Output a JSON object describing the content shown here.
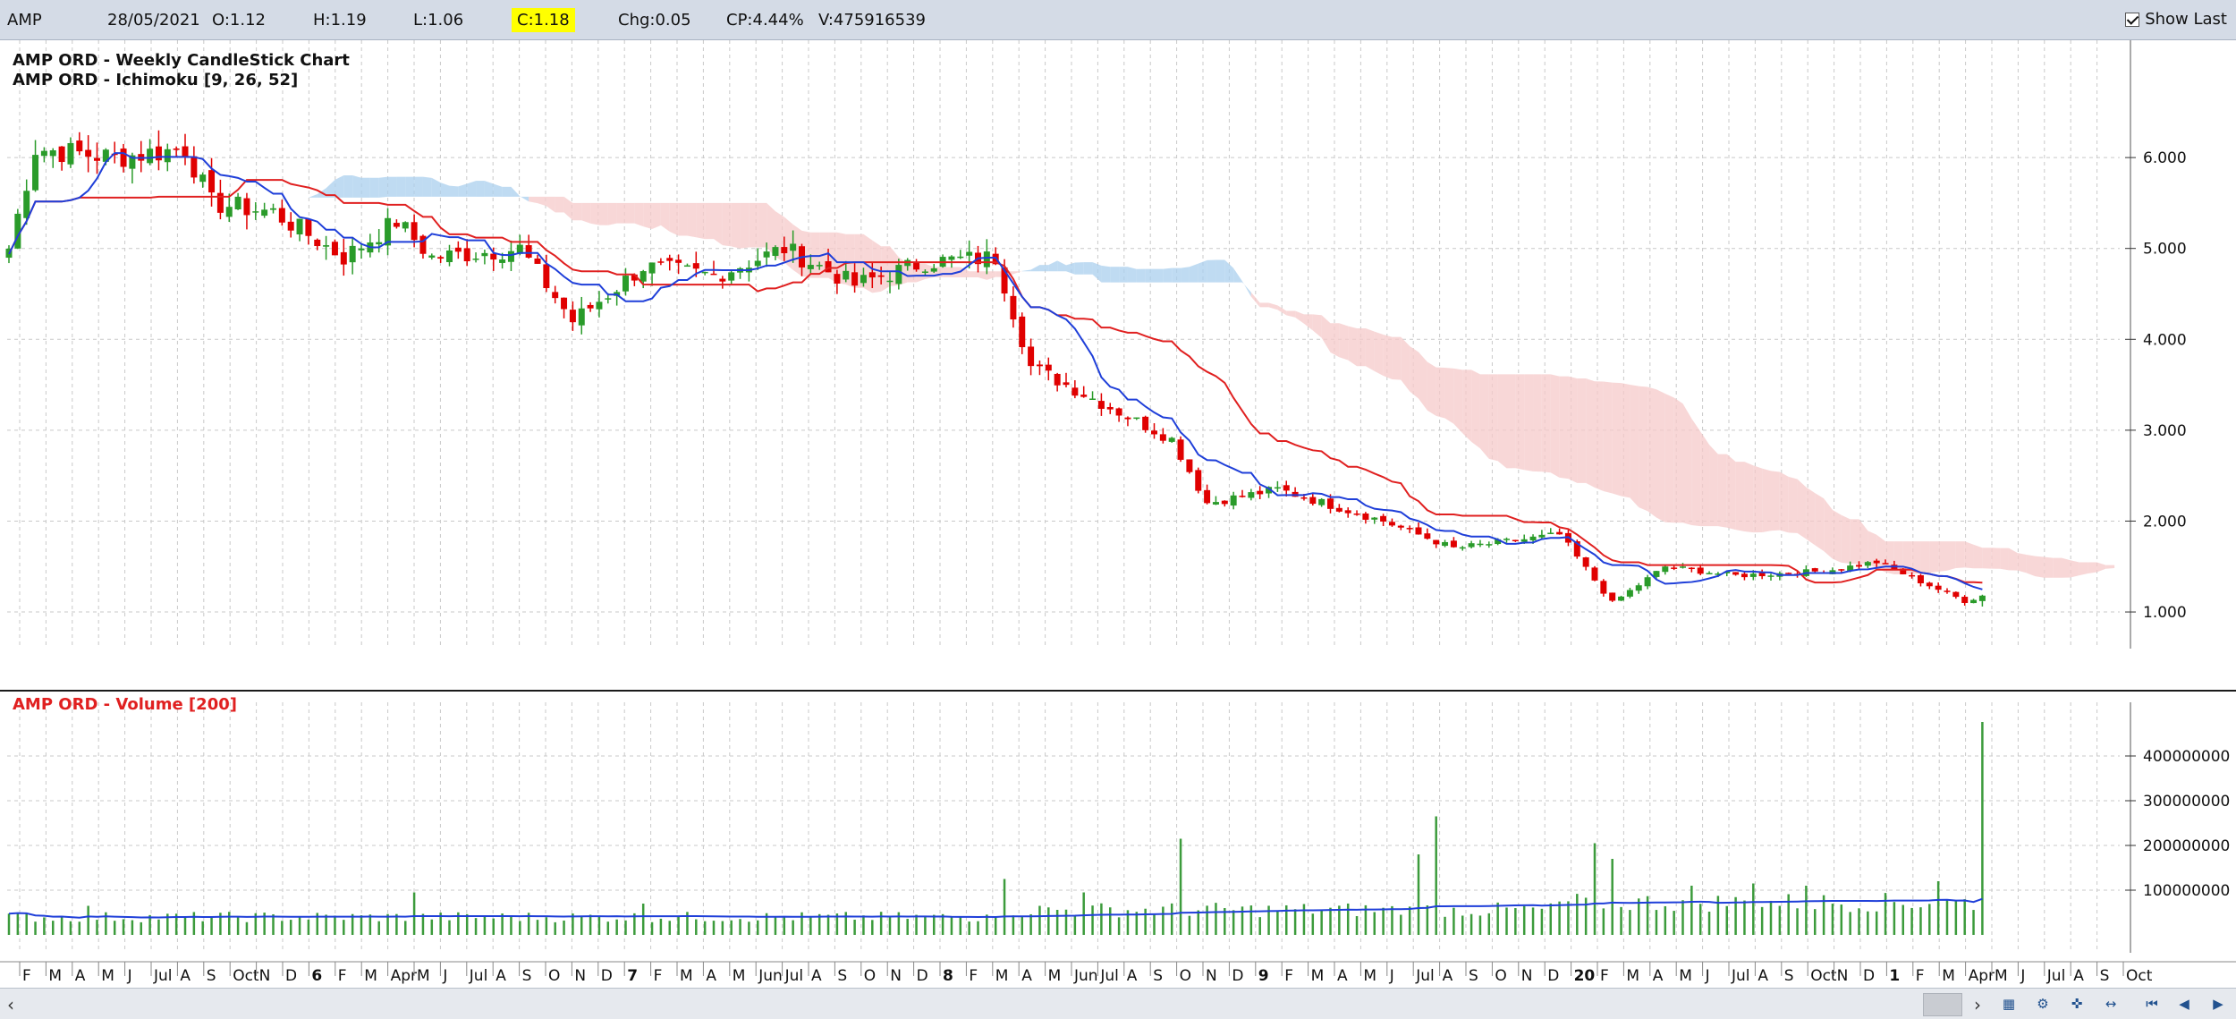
{
  "quote": {
    "symbol": "AMP",
    "date": "28/05/2021",
    "open": "O:1.12",
    "high": "H:1.19",
    "low": "L:1.06",
    "close": "C:1.18",
    "change": "Chg:0.05",
    "change_pct": "CP:4.44%",
    "volume": "V:475916539",
    "show_last_label": "Show Last"
  },
  "colors": {
    "up": "#2a9b2a",
    "down": "#e00000",
    "tenkan": "#1f3fd9",
    "kijun": "#e02020",
    "cloud_bull": "#a9cfee",
    "cloud_bear": "#f6c9c9",
    "volume_bar": "#3c9b3c",
    "volume_ma": "#1f3fd9",
    "volume_title": "#e02020"
  },
  "icons": [
    "scroll-left-icon",
    "scroll-right-icon",
    "chart-type-icon",
    "zoom-icon",
    "cursor-icon",
    "pan-icon",
    "first-icon",
    "prev-icon",
    "next-icon"
  ],
  "chart_data": [
    {
      "type": "candlestick",
      "title": "AMP ORD - Weekly CandleStick Chart",
      "subtitle": "AMP ORD - Ichimoku [9, 26, 52]",
      "x_axis_labels": [
        "F",
        "M",
        "A",
        "M",
        "J",
        "Jul",
        "A",
        "S",
        "Oct",
        "N",
        "D",
        "6",
        "F",
        "M",
        "Apr",
        "M",
        "J",
        "Jul",
        "A",
        "S",
        "O",
        "N",
        "D",
        "7",
        "F",
        "M",
        "A",
        "M",
        "Jun",
        "Jul",
        "A",
        "S",
        "O",
        "N",
        "D",
        "8",
        "F",
        "M",
        "A",
        "M",
        "Jun",
        "Jul",
        "A",
        "S",
        "O",
        "N",
        "D",
        "9",
        "F",
        "M",
        "A",
        "M",
        "J",
        "Jul",
        "A",
        "S",
        "O",
        "N",
        "D",
        "20",
        "F",
        "M",
        "A",
        "M",
        "J",
        "Jul",
        "A",
        "S",
        "Oct",
        "N",
        "D",
        "1",
        "F",
        "M",
        "Apr",
        "M",
        "J",
        "Jul",
        "A",
        "S",
        "Oct"
      ],
      "y_ticks": [
        "6.000",
        "5.000",
        "4.000",
        "3.000",
        "2.000",
        "1.000"
      ],
      "ylim": [
        0.4,
        6.7
      ],
      "weekly_close_anchors": [
        {
          "week": 0,
          "value": 5.0
        },
        {
          "week": 3,
          "value": 6.1
        },
        {
          "week": 12,
          "value": 6.0
        },
        {
          "week": 20,
          "value": 6.1
        },
        {
          "week": 23,
          "value": 5.5
        },
        {
          "week": 30,
          "value": 5.4
        },
        {
          "week": 38,
          "value": 4.9
        },
        {
          "week": 44,
          "value": 5.3
        },
        {
          "week": 48,
          "value": 4.9
        },
        {
          "week": 58,
          "value": 5.0
        },
        {
          "week": 64,
          "value": 4.2
        },
        {
          "week": 72,
          "value": 4.8
        },
        {
          "week": 80,
          "value": 4.7
        },
        {
          "week": 88,
          "value": 5.0
        },
        {
          "week": 96,
          "value": 4.6
        },
        {
          "week": 104,
          "value": 4.85
        },
        {
          "week": 112,
          "value": 4.9
        },
        {
          "week": 116,
          "value": 3.7
        },
        {
          "week": 124,
          "value": 3.3
        },
        {
          "week": 132,
          "value": 2.9
        },
        {
          "week": 136,
          "value": 2.2
        },
        {
          "week": 144,
          "value": 2.35
        },
        {
          "week": 156,
          "value": 2.0
        },
        {
          "week": 164,
          "value": 1.7
        },
        {
          "week": 176,
          "value": 1.85
        },
        {
          "week": 182,
          "value": 1.1
        },
        {
          "week": 188,
          "value": 1.5
        },
        {
          "week": 196,
          "value": 1.4
        },
        {
          "week": 206,
          "value": 1.45
        },
        {
          "week": 212,
          "value": 1.55
        },
        {
          "week": 222,
          "value": 1.12
        },
        {
          "week": 224,
          "value": 1.18
        }
      ],
      "last_bar": {
        "open": 1.12,
        "high": 1.19,
        "low": 1.06,
        "close": 1.18
      }
    },
    {
      "type": "bar",
      "title": "AMP ORD - Volume [200]",
      "y_ticks": [
        "400000000",
        "300000000",
        "200000000",
        "100000000"
      ],
      "ylim": [
        0,
        480000000
      ],
      "typical_volume": 40000000,
      "volume_spikes": [
        {
          "week": 9,
          "value": 65000000
        },
        {
          "week": 46,
          "value": 95000000
        },
        {
          "week": 72,
          "value": 70000000
        },
        {
          "week": 113,
          "value": 125000000
        },
        {
          "week": 122,
          "value": 95000000
        },
        {
          "week": 133,
          "value": 215000000
        },
        {
          "week": 160,
          "value": 180000000
        },
        {
          "week": 162,
          "value": 265000000
        },
        {
          "week": 180,
          "value": 205000000
        },
        {
          "week": 182,
          "value": 170000000
        },
        {
          "week": 191,
          "value": 110000000
        },
        {
          "week": 198,
          "value": 115000000
        },
        {
          "week": 204,
          "value": 110000000
        },
        {
          "week": 219,
          "value": 120000000
        },
        {
          "week": 224,
          "value": 475916539
        }
      ]
    }
  ]
}
